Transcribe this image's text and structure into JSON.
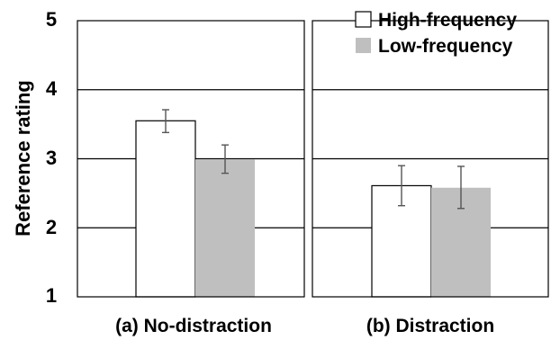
{
  "chart_data": {
    "type": "bar",
    "ylabel": "Reference rating",
    "ylim": [
      1,
      5
    ],
    "yticks": [
      "1",
      "2",
      "3",
      "4",
      "5"
    ],
    "grid": true,
    "legend_position": "top-right",
    "panels": [
      {
        "label": "(a) No-distraction",
        "series": [
          {
            "name": "High-frequency",
            "value": 3.55,
            "err_low": 3.38,
            "err_high": 3.71
          },
          {
            "name": "Low-frequency",
            "value": 2.99,
            "err_low": 2.79,
            "err_high": 3.2
          }
        ]
      },
      {
        "label": "(b) Distraction",
        "series": [
          {
            "name": "High-frequency",
            "value": 2.61,
            "err_low": 2.32,
            "err_high": 2.9
          },
          {
            "name": "Low-frequency",
            "value": 2.58,
            "err_low": 2.28,
            "err_high": 2.89
          }
        ]
      }
    ],
    "legend": [
      {
        "name": "High-frequency",
        "color": "#ffffff"
      },
      {
        "name": "Low-frequency",
        "color": "#bfbfbf"
      }
    ],
    "colors": {
      "High-frequency": "#ffffff",
      "Low-frequency": "#bfbfbf",
      "error_bar": "#555555"
    }
  }
}
